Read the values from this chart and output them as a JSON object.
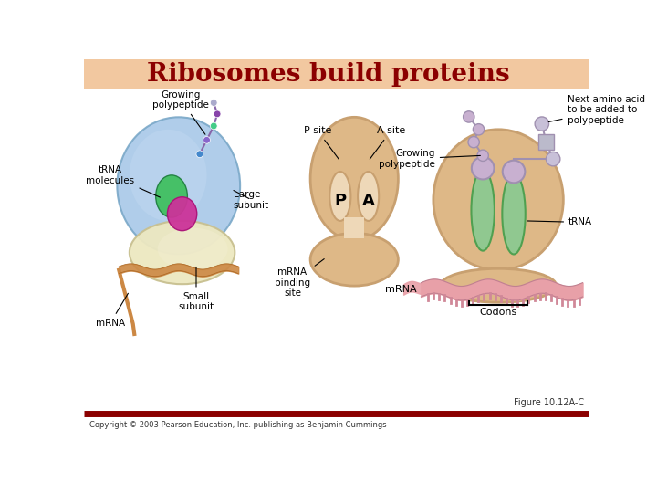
{
  "title": "Ribosomes build proteins",
  "title_color": "#8B0000",
  "header_bg": "#F2C8A0",
  "bg_color": "#FFFFFF",
  "figure_label": "Figure 10.12A-C",
  "copyright": "Copyright © 2003 Pearson Education, Inc. publishing as Benjamin Cummings",
  "red_line_color": "#8B0000",
  "labels": {
    "growing_polypeptide_A": "Growing\npolypeptide",
    "trna_molecules": "tRNA\nmolecules",
    "large_subunit": "Large\nsubunit",
    "mrna_A": "mRNA",
    "small_subunit": "Small\nsubunit",
    "p_site": "P site",
    "a_site": "A site",
    "mrna_binding": "mRNA\nbinding\nsite",
    "p_label": "P",
    "a_label": "A",
    "next_amino": "Next amino acid\nto be added to\npolypeptide",
    "growing_poly2": "Growing\npolypeptide",
    "trna2": "tRNA",
    "mrna2": "mRNA",
    "codons": "Codons"
  },
  "tan": "#DEB887",
  "tan_edge": "#C8A070",
  "blue_large": "#A8C8E8",
  "blue_edge": "#7AA8C8",
  "cream": "#EDE8C0",
  "cream_edge": "#C8C090",
  "green_trna": "#90C890",
  "green_edge": "#50A050",
  "magenta": "#CC3399",
  "magenta_edge": "#AA1177",
  "orange_mrna": "#CC8844",
  "pink_mrna": "#E8A0A8",
  "lavender": "#C8B0D0",
  "lavender_edge": "#A090B0",
  "tunnel_fill": "#EED8B8",
  "text_color": "#000000"
}
